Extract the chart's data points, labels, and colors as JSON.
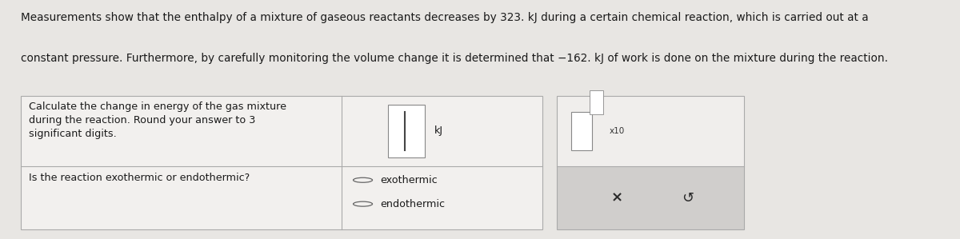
{
  "bg_color": "#e8e6e3",
  "text_color": "#1a1a1a",
  "line1": "Measurements show that the enthalpy of a mixture of gaseous reactants decreases by 323. kJ during a certain chemical reaction, which is carried out at a",
  "line2": "constant pressure. Furthermore, by carefully monitoring the volume change it is determined that −162. kJ of work is done on the mixture during the reaction.",
  "row1_left": "Calculate the change in energy of the gas mixture\nduring the reaction. Round your answer to 3\nsignificant digits.",
  "row2_left": "Is the reaction exothermic or endothermic?",
  "kj_label": "kJ",
  "radio_options": [
    "exothermic",
    "endothermic"
  ],
  "x10_label": "x10",
  "cross": "×",
  "redo": "↺",
  "font_size_body": 9.8,
  "font_size_table": 9.2,
  "table_bg": "#f2f0ee",
  "table_border": "#aaaaaa",
  "panel2_top_bg": "#f0eeec",
  "panel2_bot_bg": "#d0cecc",
  "panel2_border": "#aaaaaa",
  "input_box_border": "#888888",
  "input_box_bg": "white",
  "radio_color": "#666666"
}
